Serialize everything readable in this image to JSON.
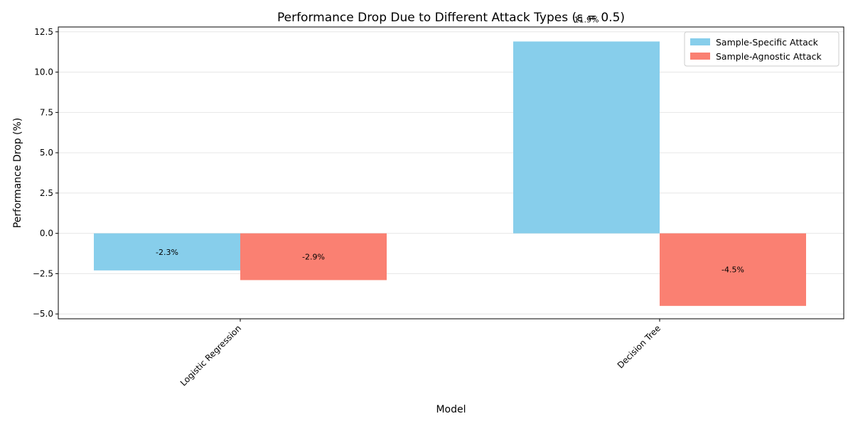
{
  "chart_data": {
    "type": "bar",
    "title": "Performance Drop Due to Different Attack Types (ε = 0.5)",
    "xlabel": "Model",
    "ylabel": "Performance Drop (%)",
    "categories": [
      "Logistic Regression",
      "Decision Tree"
    ],
    "series": [
      {
        "name": "Sample-Specific Attack",
        "values": [
          -2.3,
          11.9
        ],
        "labels": [
          "-2.3%",
          "11.9%"
        ],
        "color": "#87CEEB"
      },
      {
        "name": "Sample-Agnostic Attack",
        "values": [
          -2.9,
          -4.5
        ],
        "labels": [
          "-2.9%",
          "-4.5%"
        ],
        "color": "#FA8072"
      }
    ],
    "ylim": [
      -5.3,
      12.8
    ],
    "yticks": [
      -5.0,
      -2.5,
      0.0,
      2.5,
      5.0,
      7.5,
      10.0,
      12.5
    ],
    "ytick_labels": [
      "−5.0",
      "−2.5",
      "0.0",
      "2.5",
      "5.0",
      "7.5",
      "10.0",
      "12.5"
    ],
    "grid": "horizontal",
    "legend_position": "top-right"
  }
}
